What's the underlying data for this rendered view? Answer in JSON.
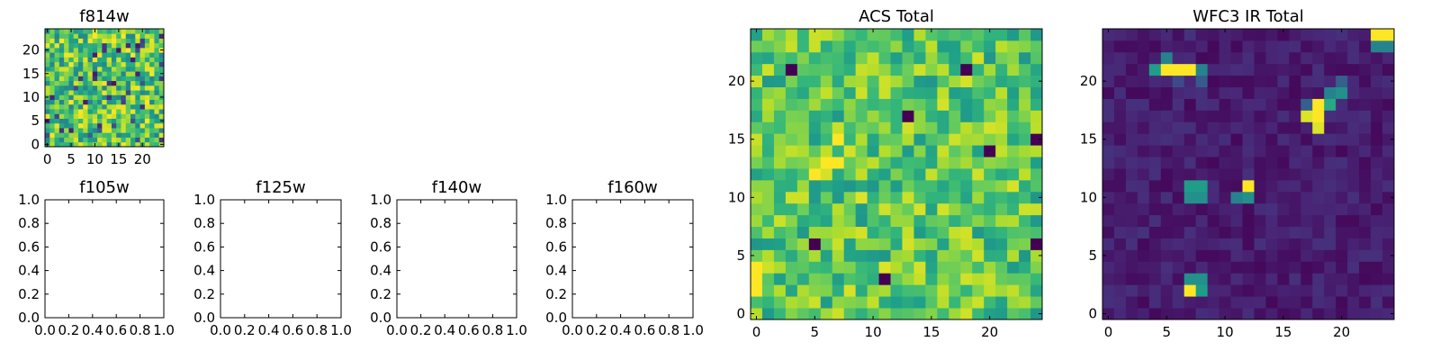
{
  "chart_data": [
    {
      "type": "heatmap",
      "title": "f814w",
      "colormap": "viridis",
      "xticks": [
        "0",
        "5",
        "10",
        "15",
        "20"
      ],
      "yticks": [
        "0",
        "5",
        "10",
        "15",
        "20"
      ],
      "xlim": [
        -0.5,
        24.5
      ],
      "ylim": [
        -0.5,
        24.5
      ],
      "grid_size": [
        25,
        25
      ],
      "values_range": [
        0,
        1
      ],
      "note_values": "noise field, mostly mid-high values with scattered low pixels"
    },
    {
      "type": "heatmap",
      "title": "f105w",
      "xticks": [
        "0.0",
        "0.2",
        "0.4",
        "0.6",
        "0.8",
        "1.0"
      ],
      "yticks": [
        "0.0",
        "0.2",
        "0.4",
        "0.6",
        "0.8",
        "1.0"
      ],
      "xlim": [
        0,
        1
      ],
      "ylim": [
        0,
        1
      ],
      "empty": true
    },
    {
      "type": "heatmap",
      "title": "f125w",
      "xticks": [
        "0.0",
        "0.2",
        "0.4",
        "0.6",
        "0.8",
        "1.0"
      ],
      "yticks": [
        "0.0",
        "0.2",
        "0.4",
        "0.6",
        "0.8",
        "1.0"
      ],
      "xlim": [
        0,
        1
      ],
      "ylim": [
        0,
        1
      ],
      "empty": true
    },
    {
      "type": "heatmap",
      "title": "f140w",
      "xticks": [
        "0.0",
        "0.2",
        "0.4",
        "0.6",
        "0.8",
        "1.0"
      ],
      "yticks": [
        "0.0",
        "0.2",
        "0.4",
        "0.6",
        "0.8",
        "1.0"
      ],
      "xlim": [
        0,
        1
      ],
      "ylim": [
        0,
        1
      ],
      "empty": true
    },
    {
      "type": "heatmap",
      "title": "f160w",
      "xticks": [
        "0.0",
        "0.2",
        "0.4",
        "0.6",
        "0.8",
        "1.0"
      ],
      "yticks": [
        "0.0",
        "0.2",
        "0.4",
        "0.6",
        "0.8",
        "1.0"
      ],
      "xlim": [
        0,
        1
      ],
      "ylim": [
        0,
        1
      ],
      "empty": true
    },
    {
      "type": "heatmap",
      "title": "ACS Total",
      "colormap": "viridis",
      "xticks": [
        "0",
        "5",
        "10",
        "15",
        "20"
      ],
      "yticks": [
        "0",
        "5",
        "10",
        "15",
        "20"
      ],
      "xlim": [
        -0.5,
        24.5
      ],
      "ylim": [
        -0.5,
        24.5
      ],
      "grid_size": [
        25,
        25
      ],
      "low_pixels": [
        [
          3,
          21
        ],
        [
          18,
          21
        ],
        [
          13,
          17
        ],
        [
          20,
          14
        ],
        [
          24,
          15
        ],
        [
          5,
          6
        ],
        [
          11,
          3
        ],
        [
          24,
          6
        ]
      ]
    },
    {
      "type": "heatmap",
      "title": "WFC3 IR Total",
      "colormap": "viridis",
      "xticks": [
        "0",
        "5",
        "10",
        "15",
        "20"
      ],
      "yticks": [
        "0",
        "5",
        "10",
        "15",
        "20"
      ],
      "xlim": [
        -0.5,
        24.5
      ],
      "ylim": [
        -0.5,
        24.5
      ],
      "grid_size": [
        25,
        25
      ],
      "bright_pixels": [
        [
          5,
          21,
          1.0
        ],
        [
          6,
          21,
          1.0
        ],
        [
          7,
          21,
          1.0
        ],
        [
          4,
          21,
          0.55
        ],
        [
          5,
          22,
          0.45
        ],
        [
          8,
          21,
          0.45
        ],
        [
          8,
          20,
          0.28
        ],
        [
          6,
          20,
          0.22
        ],
        [
          18,
          18,
          1.0
        ],
        [
          18,
          17,
          1.0
        ],
        [
          17,
          17,
          0.95
        ],
        [
          18,
          16,
          0.95
        ],
        [
          19,
          18,
          0.6
        ],
        [
          19,
          19,
          0.45
        ],
        [
          20,
          19,
          0.5
        ],
        [
          17,
          18,
          0.3
        ],
        [
          20,
          20,
          0.3
        ],
        [
          23,
          24,
          1.0
        ],
        [
          24,
          24,
          1.0
        ],
        [
          23,
          23,
          0.45
        ],
        [
          24,
          23,
          0.45
        ],
        [
          7,
          11,
          0.55
        ],
        [
          8,
          11,
          0.55
        ],
        [
          7,
          10,
          0.5
        ],
        [
          8,
          10,
          0.5
        ],
        [
          12,
          11,
          1.0
        ],
        [
          12,
          10,
          0.5
        ],
        [
          11,
          10,
          0.45
        ],
        [
          7,
          2,
          1.0
        ],
        [
          8,
          2,
          0.55
        ],
        [
          7,
          3,
          0.5
        ],
        [
          8,
          3,
          0.5
        ]
      ]
    }
  ]
}
